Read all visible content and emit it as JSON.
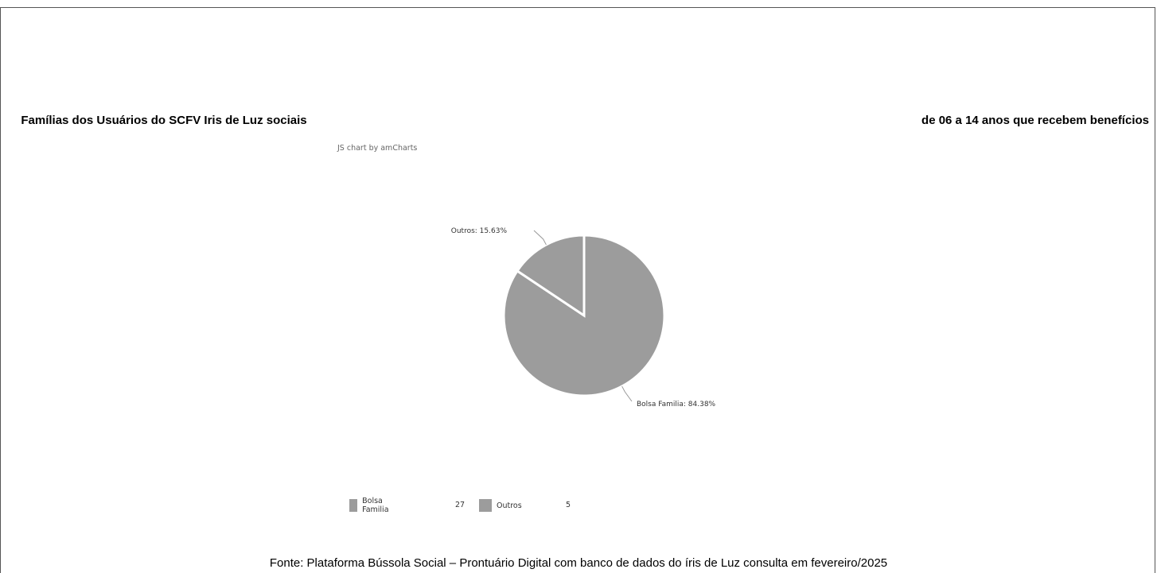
{
  "header": {
    "title_left": "Famílias dos Usuários do SCFV Iris de Luz sociais",
    "title_right": "de 06 a 14 anos que recebem benefícios"
  },
  "credit": "JS chart by amCharts",
  "source": "Fonte: Plataforma Bússola Social – Prontuário Digital com banco de dados do íris de Luz consulta em fevereiro/2025",
  "colors": {
    "slice": "#9c9c9c",
    "stroke": "#ffffff",
    "label_line": "#999999"
  },
  "chart_data": {
    "type": "pie",
    "title": "Famílias dos Usuários do SCFV Iris de Luz de 06 a 14 anos que recebem benefícios sociais",
    "categories": [
      "Bolsa Familia",
      "Outros"
    ],
    "values": [
      27,
      5
    ],
    "labels": [
      "Bolsa Familia: 84.38%",
      "Outros: 15.63%"
    ],
    "legend": [
      {
        "name": "Bolsa Familia",
        "value": "27"
      },
      {
        "name": "Outros",
        "value": "5"
      }
    ],
    "legend_position": "bottom"
  }
}
